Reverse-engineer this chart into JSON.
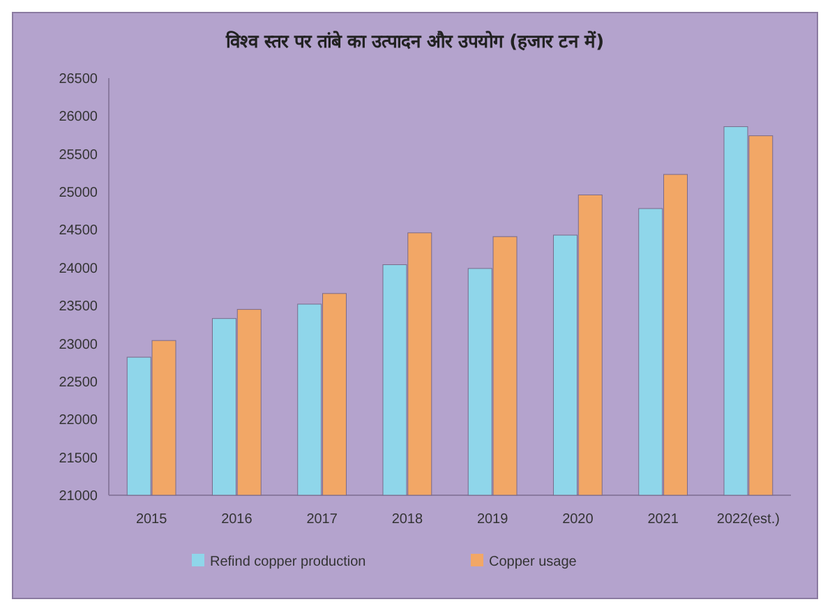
{
  "chart_data": {
    "type": "bar",
    "title": "विश्व स्तर पर तांबे का उत्पादन और उपयोग (हजार टन में)",
    "categories": [
      "2015",
      "2016",
      "2017",
      "2018",
      "2019",
      "2020",
      "2021",
      "2022(est.)"
    ],
    "series": [
      {
        "name": "Refind copper production",
        "color": "#8fd6ea",
        "values": [
          22820,
          23330,
          23520,
          24040,
          23990,
          24430,
          24780,
          25860
        ]
      },
      {
        "name": "Copper usage",
        "color": "#f2a766",
        "values": [
          23040,
          23450,
          23660,
          24460,
          24410,
          24960,
          25230,
          25740
        ]
      }
    ],
    "ylim": [
      21000,
      26500
    ],
    "yticks": [
      21000,
      21500,
      22000,
      22500,
      23000,
      23500,
      24000,
      24500,
      25000,
      25500,
      26000,
      26500
    ],
    "grid": false,
    "legend": "bottom"
  }
}
